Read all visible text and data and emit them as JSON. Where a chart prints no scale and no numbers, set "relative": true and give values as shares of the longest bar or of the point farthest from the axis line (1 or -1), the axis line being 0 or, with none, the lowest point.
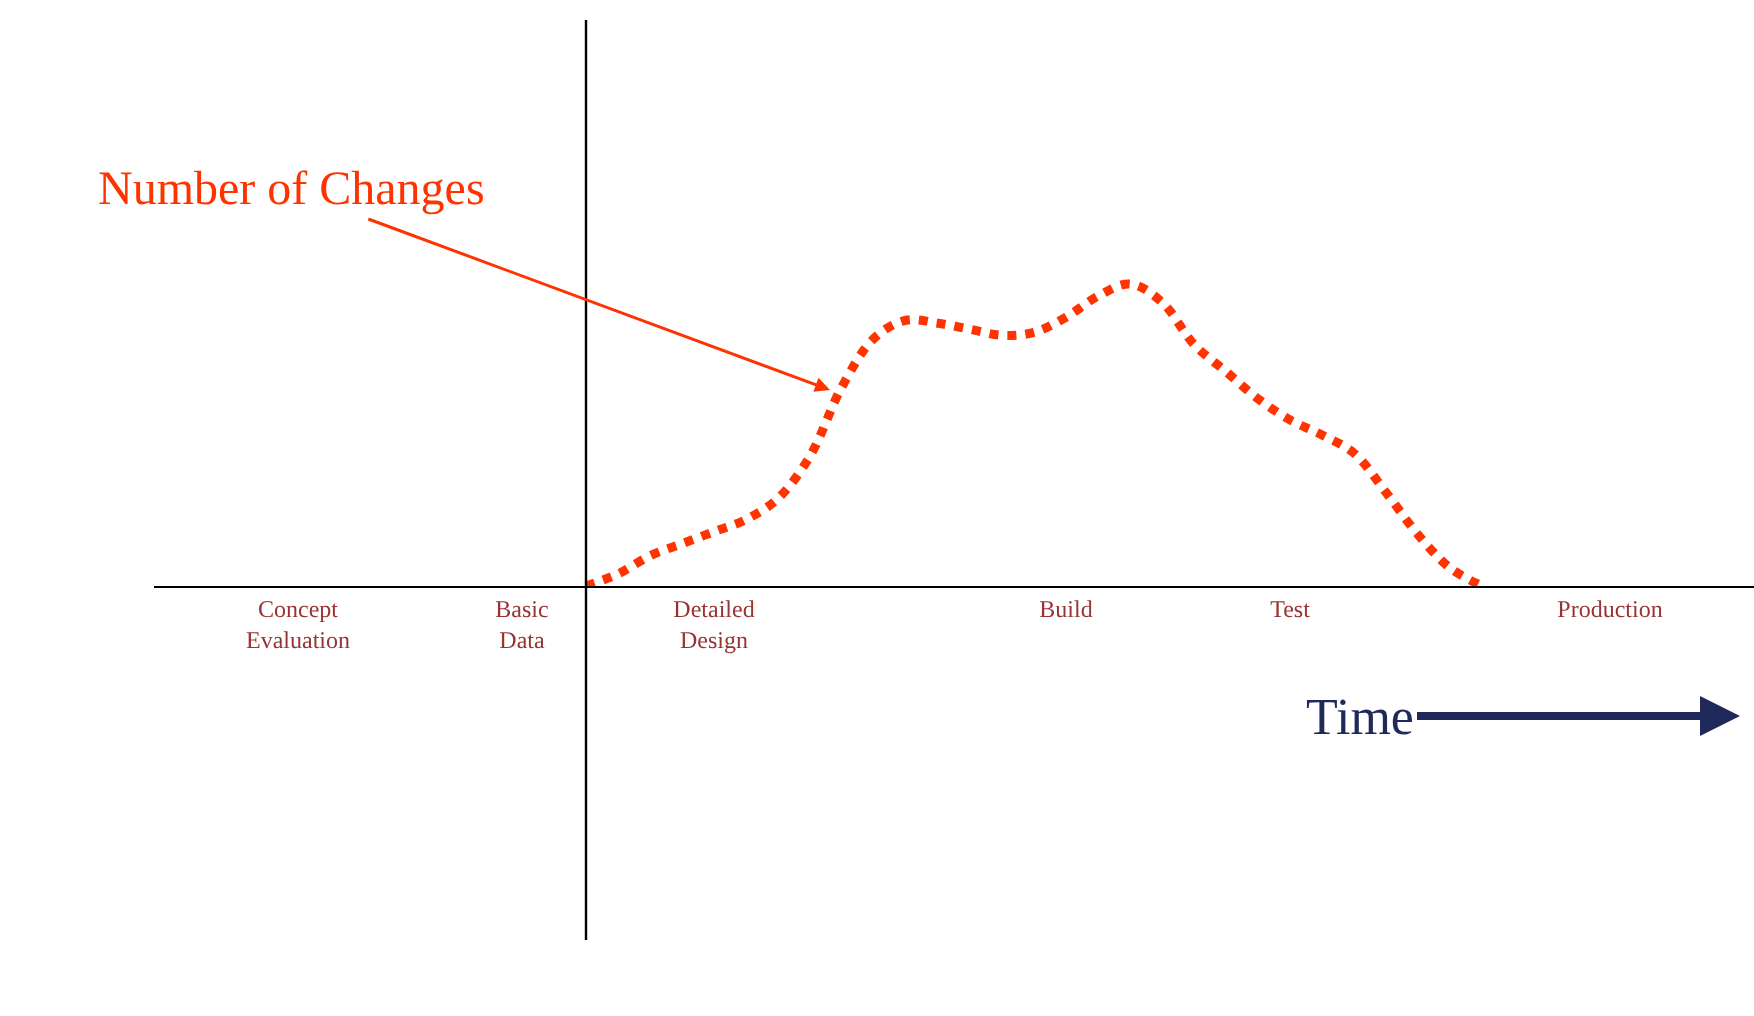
{
  "chart_data": {
    "type": "line",
    "relative": true,
    "categories": [
      null,
      null,
      null,
      null,
      "Concept\nEvaluation",
      null,
      null,
      null,
      null,
      null,
      null,
      "Basic\nData",
      null,
      null,
      null,
      null,
      null,
      "Detailed\nDesign",
      null,
      null,
      null,
      null,
      null,
      null,
      null,
      null,
      null,
      null,
      "Build",
      null,
      null,
      null,
      null,
      null,
      null,
      "Test",
      null,
      null,
      null,
      null,
      null,
      null,
      null,
      null,
      null,
      "Production",
      null,
      null,
      null,
      null
    ],
    "series": [
      {
        "color": "#ff3300",
        "values": [
          null,
          null,
          null,
          null,
          null,
          null,
          null,
          null,
          null,
          null,
          null,
          null,
          null,
          0,
          0.04,
          0.1,
          0.14,
          0.18,
          0.22,
          0.29,
          0.43,
          0.66,
          0.82,
          0.88,
          0.87,
          0.85,
          0.83,
          0.84,
          0.89,
          0.96,
          1,
          0.94,
          0.8,
          0.71,
          0.62,
          0.55,
          0.5,
          0.44,
          0.31,
          0.17,
          0.06,
          0,
          null,
          null,
          null,
          null,
          null,
          null,
          null,
          null
        ]
      }
    ],
    "line_style": "dotted",
    "xlabel": "Time",
    "annotations": [
      "Number of Changes"
    ]
  }
}
